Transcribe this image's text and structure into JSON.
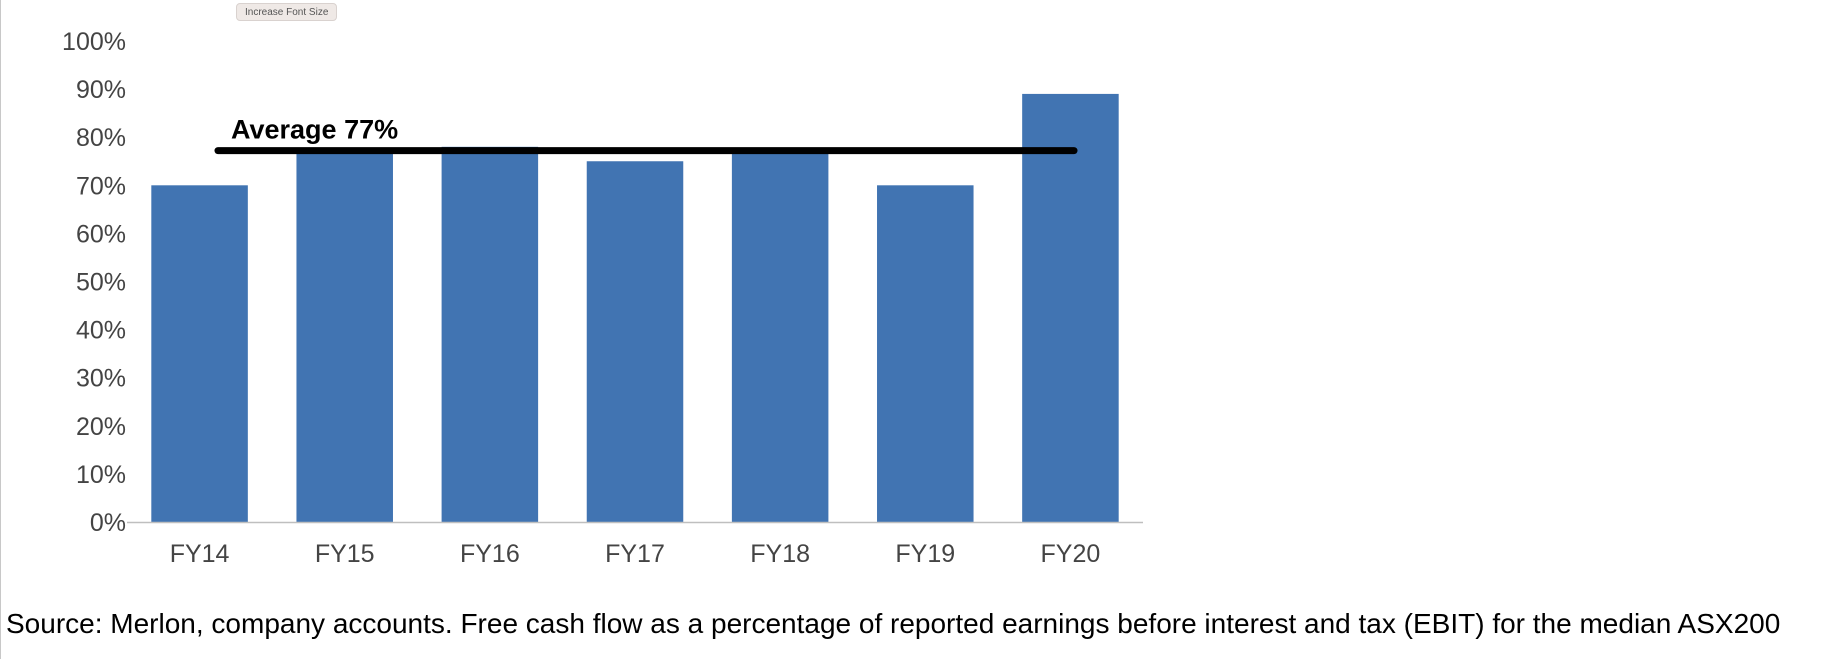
{
  "toolbar": {
    "increase_font_label": "Increase Font Size"
  },
  "chart_data": {
    "type": "bar",
    "categories": [
      "FY14",
      "FY15",
      "FY16",
      "FY17",
      "FY18",
      "FY19",
      "FY20"
    ],
    "values": [
      70,
      77,
      78,
      75,
      77,
      70,
      89
    ],
    "ylim": [
      0,
      100
    ],
    "ytick_step": 10,
    "ytick_suffix": "%",
    "grid": false,
    "bar_color": "#4174b2",
    "average": {
      "value": 77,
      "label": "Average 77%",
      "color": "#000000"
    }
  },
  "caption": "Source: Merlon, company accounts. Free cash flow as a percentage of reported earnings before interest and tax (EBIT) for the median ASX200"
}
